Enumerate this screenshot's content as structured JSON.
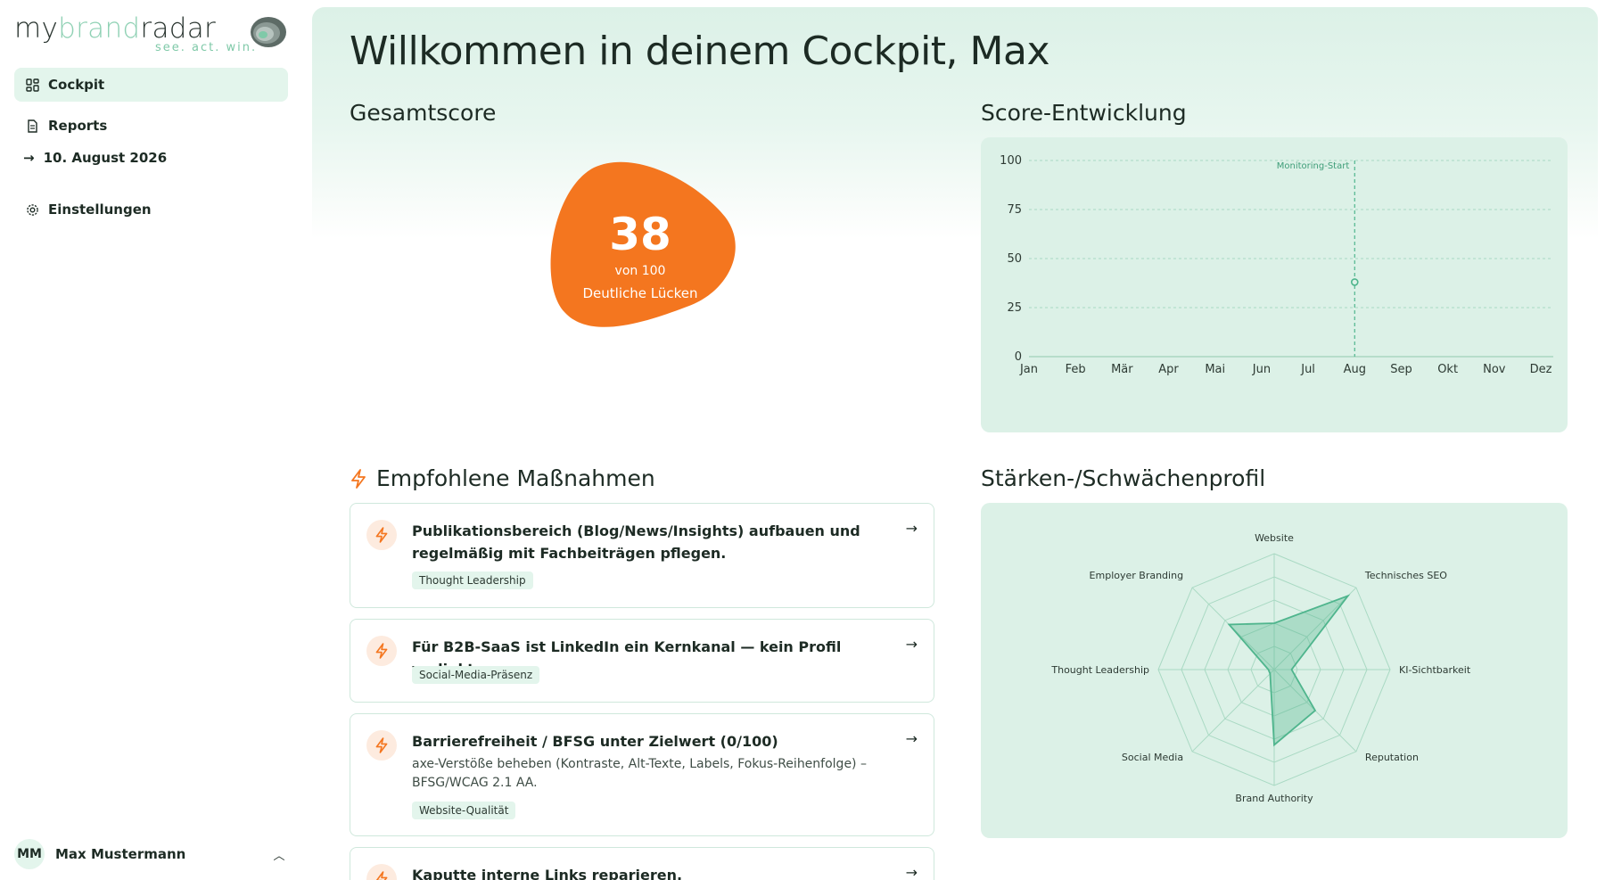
{
  "logo": {
    "part1": "my",
    "part2": "brand",
    "part3": "radar",
    "tagline": "see. act. win."
  },
  "sidebar": {
    "items": [
      {
        "label": "Cockpit",
        "icon": "dashboard-icon",
        "active": true
      },
      {
        "label": "Reports",
        "icon": "document-icon",
        "active": false
      },
      {
        "label": "Einstellungen",
        "icon": "gear-icon",
        "active": false
      }
    ],
    "sub_item": {
      "label": "10. August 2026",
      "icon": "arrow-right-icon"
    }
  },
  "user": {
    "initials": "MM",
    "name": "Max Mustermann"
  },
  "page_title": "Willkommen in deinem Cockpit, Max",
  "score": {
    "section_title": "Gesamtscore",
    "value": "38",
    "of_label": "von 100",
    "status": "Deutliche Lücken",
    "color": "#f4761f"
  },
  "score_chart": {
    "section_title": "Score-Entwicklung",
    "chart_data": {
      "type": "line",
      "categories": [
        "Jan",
        "Feb",
        "Mär",
        "Apr",
        "Mai",
        "Jun",
        "Jul",
        "Aug",
        "Sep",
        "Okt",
        "Nov",
        "Dez"
      ],
      "series": [
        {
          "values": [
            null,
            null,
            null,
            null,
            null,
            null,
            null,
            38,
            null,
            null,
            null,
            null
          ]
        }
      ],
      "y_ticks": [
        "100",
        "75",
        "50",
        "25",
        "0"
      ],
      "ylim": [
        0,
        100
      ],
      "annotation": {
        "label": "Monitoring-Start",
        "at": "Aug"
      },
      "grid": true,
      "color": "#4fb58d"
    }
  },
  "recommendations": {
    "section_title": "Empfohlene Maßnahmen",
    "items": [
      {
        "title": "Publikationsbereich (Blog/News/Insights) aufbauen und regelmäßig mit Fachbeiträgen pflegen.",
        "description": "",
        "tag": "Thought Leadership"
      },
      {
        "title": "Für B2B-SaaS ist LinkedIn ein Kernkanal — kein Profil verlinkt.",
        "description": "",
        "tag": "Social-Media-Präsenz"
      },
      {
        "title": "Barrierefreiheit / BFSG unter Zielwert (0/100)",
        "description": "axe-Verstöße beheben (Kontraste, Alt-Texte, Labels, Fokus-Reihenfolge) – BFSG/WCAG 2.1 AA.",
        "tag": "Website-Qualität"
      },
      {
        "title": "Kaputte interne Links reparieren.",
        "description": "",
        "tag": ""
      }
    ]
  },
  "profile": {
    "section_title": "Stärken-/Schwächenprofil",
    "chart_data": {
      "type": "radar",
      "axes": [
        "Website",
        "Technisches SEO",
        "KI-Sichtbarkeit",
        "Reputation",
        "Brand Authority",
        "Social Media",
        "Thought Leadership",
        "Employer Branding"
      ],
      "values": [
        40,
        90,
        15,
        50,
        65,
        5,
        5,
        55
      ],
      "range": [
        0,
        100
      ],
      "color": "#4fb58d"
    }
  }
}
